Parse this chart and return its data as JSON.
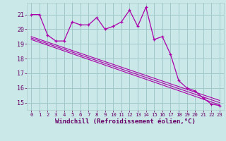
{
  "background_color": "#cbe8e8",
  "grid_color": "#a0c8c8",
  "line_color": "#aa00aa",
  "xlabel": "Windchill (Refroidissement éolien,°C)",
  "xlabel_fontsize": 6.5,
  "yticks": [
    15,
    16,
    17,
    18,
    19,
    20,
    21
  ],
  "xticks": [
    0,
    1,
    2,
    3,
    4,
    5,
    6,
    7,
    8,
    9,
    10,
    11,
    12,
    13,
    14,
    15,
    16,
    17,
    18,
    19,
    20,
    21,
    22,
    23
  ],
  "ylim": [
    14.5,
    21.8
  ],
  "xlim": [
    -0.5,
    23.5
  ],
  "series1_x": [
    0,
    1,
    2,
    3,
    4,
    5,
    6,
    7,
    8,
    9,
    10,
    11,
    12,
    13,
    14,
    15,
    16,
    17,
    18,
    19,
    20,
    21,
    22,
    23
  ],
  "series1_y": [
    21.0,
    21.0,
    19.6,
    19.2,
    19.2,
    20.5,
    20.3,
    20.3,
    20.8,
    20.0,
    20.2,
    20.5,
    21.3,
    20.2,
    21.5,
    19.3,
    19.5,
    18.3,
    16.5,
    16.0,
    15.8,
    15.3,
    14.9,
    14.8
  ],
  "line2_x": [
    0,
    23
  ],
  "line2_y": [
    19.3,
    14.85
  ],
  "line3_x": [
    0,
    23
  ],
  "line3_y": [
    19.4,
    15.0
  ],
  "line4_x": [
    0,
    23
  ],
  "line4_y": [
    19.5,
    15.15
  ]
}
